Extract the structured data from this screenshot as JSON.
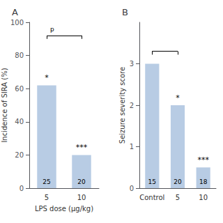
{
  "chart_data": [
    {
      "type": "bar",
      "title": "A",
      "categories": [
        "5",
        "10"
      ],
      "values": [
        62,
        20
      ],
      "n": [
        25,
        20
      ],
      "sig": [
        "*",
        "***"
      ],
      "xlabel": "LPS dose (µg/kg)",
      "ylabel": "Incidence of SIRA (%)",
      "ylim": [
        0,
        100
      ],
      "yticks": [
        0,
        20,
        40,
        60,
        80,
        100
      ],
      "color": "#b8cce4",
      "bracket": {
        "from": "5",
        "to": "10",
        "y": 92,
        "label": "p"
      },
      "grid": false
    },
    {
      "type": "bar",
      "title": "B",
      "categories": [
        "Control",
        "5",
        "10"
      ],
      "values": [
        3.0,
        2.0,
        0.5
      ],
      "n": [
        15,
        20,
        18
      ],
      "sig": [
        null,
        "*",
        "***"
      ],
      "ylabel": "Seizure severity score",
      "ylim": [
        0,
        4
      ],
      "yticks": [
        0,
        1,
        2,
        3
      ],
      "color": "#b8cce4",
      "bracket": {
        "from": "Control",
        "to": "5",
        "y": 3.3
      },
      "grid": false
    }
  ]
}
